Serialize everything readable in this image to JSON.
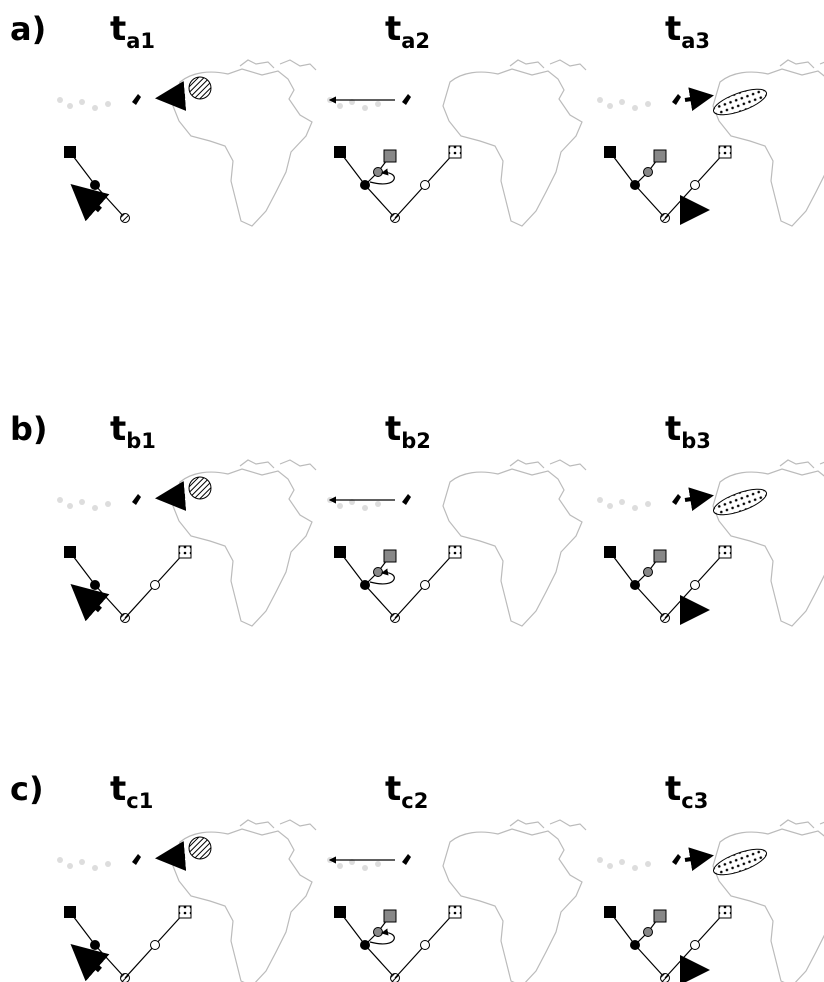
{
  "rows": [
    {
      "label": "a)",
      "panels": [
        {
          "t": "t",
          "sub": "a1"
        },
        {
          "t": "t",
          "sub": "a2"
        },
        {
          "t": "t",
          "sub": "a3"
        }
      ]
    },
    {
      "label": "b)",
      "panels": [
        {
          "t": "t",
          "sub": "b1"
        },
        {
          "t": "t",
          "sub": "b2"
        },
        {
          "t": "t",
          "sub": "b3"
        }
      ]
    },
    {
      "label": "c)",
      "panels": [
        {
          "t": "t",
          "sub": "c1"
        },
        {
          "t": "t",
          "sub": "c2"
        },
        {
          "t": "t",
          "sub": "c3"
        }
      ]
    }
  ]
}
